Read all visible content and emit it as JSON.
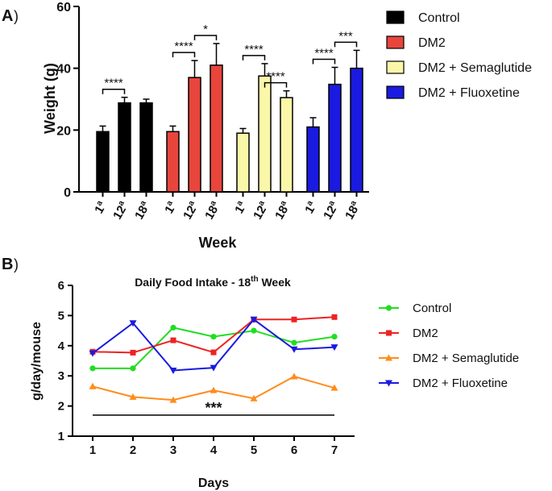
{
  "panel_a": {
    "letter": "A",
    "paren": ")",
    "chart_data": {
      "type": "bar",
      "title": "",
      "xlabel": "Week",
      "ylabel": "Weight (g)",
      "ylim": [
        0,
        60
      ],
      "yticks": [
        "0",
        "20",
        "40",
        "60"
      ],
      "categories": [
        {
          "base": "1",
          "sup": "a"
        },
        {
          "base": "12",
          "sup": "a"
        },
        {
          "base": "18",
          "sup": "a"
        }
      ],
      "series": [
        {
          "name": "Control",
          "color": "#000000",
          "values": [
            19.5,
            28.8,
            28.8
          ],
          "errors": [
            1.8,
            1.8,
            1.2
          ]
        },
        {
          "name": "DM2",
          "color": "#e8453c",
          "values": [
            19.5,
            37.0,
            41.0
          ],
          "errors": [
            1.8,
            5.5,
            7.0
          ]
        },
        {
          "name": "DM2 + Semaglutide",
          "color": "#fbf7a8",
          "values": [
            19.0,
            37.5,
            30.5
          ],
          "errors": [
            1.5,
            4.0,
            2.2
          ]
        },
        {
          "name": "DM2 + Fluoxetine",
          "color": "#1a1ae0",
          "values": [
            21.0,
            34.8,
            40.0
          ],
          "errors": [
            3.0,
            5.5,
            5.8
          ]
        }
      ],
      "significance": [
        {
          "group": 0,
          "from": 0,
          "to": 1,
          "label": "****"
        },
        {
          "group": 1,
          "from": 0,
          "to": 1,
          "label": "****"
        },
        {
          "group": 1,
          "from": 1,
          "to": 2,
          "label": "*"
        },
        {
          "group": 2,
          "from": 0,
          "to": 1,
          "label": "****"
        },
        {
          "group": 2,
          "from": 1,
          "to": 2,
          "label": "****"
        },
        {
          "group": 3,
          "from": 0,
          "to": 1,
          "label": "****"
        },
        {
          "group": 3,
          "from": 1,
          "to": 2,
          "label": "***"
        }
      ],
      "legend_position": "right"
    }
  },
  "panel_b": {
    "letter": "B",
    "paren": ")",
    "chart_data": {
      "type": "line",
      "title_main": "Daily Food Intake - 18",
      "title_sup": "th",
      "title_tail": " Week",
      "xlabel": "Days",
      "ylabel": "g/day/mouse",
      "x": [
        1,
        2,
        3,
        4,
        5,
        6,
        7
      ],
      "xticks": [
        "1",
        "2",
        "3",
        "4",
        "5",
        "6",
        "7"
      ],
      "ylim": [
        1,
        6
      ],
      "yticks": [
        "1",
        "2",
        "3",
        "4",
        "5",
        "6"
      ],
      "series": [
        {
          "name": "Control",
          "color": "#22dd22",
          "marker": "circle",
          "values": [
            3.25,
            3.25,
            4.6,
            4.3,
            4.5,
            4.1,
            4.3
          ]
        },
        {
          "name": "DM2",
          "color": "#ee2222",
          "marker": "square",
          "values": [
            3.8,
            3.77,
            4.18,
            3.78,
            4.87,
            4.87,
            4.95
          ]
        },
        {
          "name": "DM2 + Semaglutide",
          "color": "#ff8c1a",
          "marker": "triangle-up",
          "values": [
            2.65,
            2.3,
            2.2,
            2.52,
            2.25,
            2.98,
            2.6
          ]
        },
        {
          "name": "DM2 + Fluoxetine",
          "color": "#1a1ae0",
          "marker": "triangle-down",
          "values": [
            3.75,
            4.75,
            3.18,
            3.27,
            4.87,
            3.88,
            3.95
          ]
        }
      ],
      "annotation": {
        "label": "***",
        "x_from": 1,
        "x_to": 7,
        "y": 1.7
      },
      "legend_position": "right"
    }
  }
}
